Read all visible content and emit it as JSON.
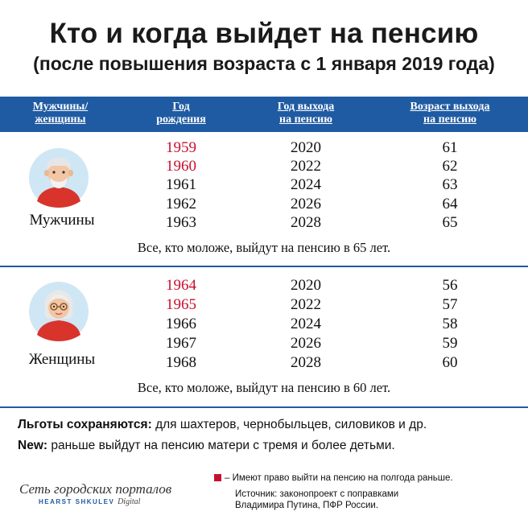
{
  "title": "Кто и когда выйдет на пенсию",
  "subtitle": "(после повышения возраста с 1 января 2019 года)",
  "header": {
    "col1": [
      "Мужчины/",
      "женщины"
    ],
    "col2": [
      "Год",
      "рождения"
    ],
    "col3": [
      "Год выхода",
      "на пенсию"
    ],
    "col4": [
      "Возраст выхода",
      "на пенсию"
    ]
  },
  "men": {
    "label": "Мужчины",
    "rows": [
      {
        "year": "1959",
        "exit": "2020",
        "age": "61",
        "early": true
      },
      {
        "year": "1960",
        "exit": "2022",
        "age": "62",
        "early": true
      },
      {
        "year": "1961",
        "exit": "2024",
        "age": "63",
        "early": false
      },
      {
        "year": "1962",
        "exit": "2026",
        "age": "64",
        "early": false
      },
      {
        "year": "1963",
        "exit": "2028",
        "age": "65",
        "early": false
      }
    ],
    "note": "Все, кто моложе, выйдут на пенсию в 65 лет."
  },
  "women": {
    "label": "Женщины",
    "rows": [
      {
        "year": "1964",
        "exit": "2020",
        "age": "56",
        "early": true
      },
      {
        "year": "1965",
        "exit": "2022",
        "age": "57",
        "early": true
      },
      {
        "year": "1966",
        "exit": "2024",
        "age": "58",
        "early": false
      },
      {
        "year": "1967",
        "exit": "2026",
        "age": "59",
        "early": false
      },
      {
        "year": "1968",
        "exit": "2028",
        "age": "60",
        "early": false
      }
    ],
    "note": "Все, кто моложе, выйдут на пенсию в 60 лет."
  },
  "benefits": {
    "bold": "Льготы сохраняются:",
    "text": " для шахтеров, чернобыльцев, силовиков и др."
  },
  "new_info": {
    "bold": "New:",
    "text": " раньше выйдут на пенсию матери с тремя и более детьми."
  },
  "logo": {
    "name": "Сеть городских порталов",
    "sub": "HEARST SHKULEV",
    "sub2": "Digital"
  },
  "legend": "– Имеют право выйти на пенсию на полгода раньше.",
  "source": [
    "Источник: законопроект с поправками",
    "Владимира Путина, ПФР России."
  ],
  "colors": {
    "accent": "#1f5ba3",
    "highlight": "#c8102e"
  }
}
